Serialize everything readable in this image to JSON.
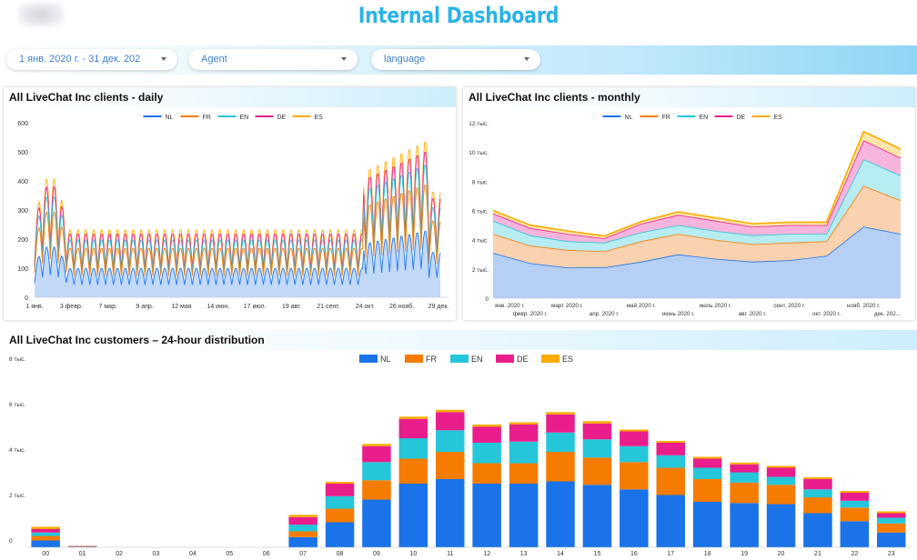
{
  "header": {
    "title": "Internal Dashboard",
    "logo_icon": "blurred-logo-icon"
  },
  "filters": [
    {
      "label": "1 янв. 2020 г. - 31 дек. 202"
    },
    {
      "label": "Agent"
    },
    {
      "label": "language"
    }
  ],
  "colors": {
    "NL": "#1a73e8",
    "FR": "#f57c00",
    "EN": "#26c6da",
    "DE": "#e91e8c",
    "ES": "#f9ab00",
    "title": "#2ab3e6"
  },
  "chart_data": [
    {
      "type": "line",
      "title": "All LiveChat Inc clients - daily",
      "legend": [
        "NL",
        "FR",
        "EN",
        "DE",
        "ES"
      ],
      "legend_position": "top-center",
      "y_ticks": [
        "0",
        "100",
        "200",
        "300",
        "400",
        "500",
        "600"
      ],
      "ylim": [
        0,
        600
      ],
      "x_ticks": [
        "1 янв.",
        "3 февр.",
        "7 мар.",
        "9 апр.",
        "12 мая",
        "14 июн.",
        "17 июл.",
        "19 авг.",
        "21 сент.",
        "24 окт.",
        "26 нояб.",
        "29 дек."
      ],
      "series_summary": {
        "NL": {
          "weekday_low": 50,
          "weekday_high": 150,
          "late_high": 250
        },
        "total_stack_peak": 560
      }
    },
    {
      "type": "area",
      "title": "All LiveChat Inc clients - monthly",
      "legend": [
        "NL",
        "FR",
        "EN",
        "DE",
        "ES"
      ],
      "legend_position": "top-center",
      "y_ticks": [
        "0",
        "2 тыс.",
        "4 тыс.",
        "6 тыс.",
        "8 тыс.",
        "10 тыс.",
        "12 тыс."
      ],
      "ylim": [
        0,
        12000
      ],
      "x_ticks_top": [
        "янв. 2020 г.",
        "март 2020 г.",
        "май 2020 г.",
        "июль 2020 г.",
        "сент. 2020 г.",
        "нояб. 2020 г."
      ],
      "x_ticks_bottom": [
        "февр. 2020 г.",
        "апр. 2020 г.",
        "июнь 2020 г.",
        "авг. 2020 г.",
        "окт. 2020 г.",
        "дек. 202..."
      ],
      "series": [
        {
          "name": "NL",
          "values": [
            3100,
            2400,
            2100,
            2100,
            2500,
            3000,
            2700,
            2500,
            2600,
            2900,
            4900,
            4400
          ]
        },
        {
          "name": "FR",
          "values": [
            1300,
            1200,
            1200,
            1100,
            1400,
            1400,
            1300,
            1200,
            1200,
            1000,
            2800,
            2300
          ]
        },
        {
          "name": "EN",
          "values": [
            900,
            700,
            600,
            600,
            600,
            600,
            600,
            600,
            600,
            500,
            1800,
            1700
          ]
        },
        {
          "name": "DE",
          "values": [
            500,
            500,
            500,
            300,
            600,
            700,
            700,
            600,
            600,
            600,
            1300,
            1200
          ]
        },
        {
          "name": "ES",
          "values": [
            200,
            200,
            200,
            150,
            150,
            200,
            200,
            200,
            200,
            200,
            600,
            600
          ]
        }
      ]
    },
    {
      "type": "bar",
      "stacked": true,
      "title": "All LiveChat Inc customers – 24-hour distribution",
      "legend": [
        "NL",
        "FR",
        "EN",
        "DE",
        "ES"
      ],
      "legend_position": "top-center",
      "y_ticks": [
        "0",
        "2 тыс.",
        "4 тыс.",
        "6 тыс.",
        "8 тыс."
      ],
      "ylim": [
        0,
        8000
      ],
      "categories": [
        "00",
        "01",
        "02",
        "03",
        "04",
        "05",
        "06",
        "07",
        "08",
        "09",
        "10",
        "11",
        "12",
        "13",
        "14",
        "15",
        "16",
        "17",
        "18",
        "19",
        "20",
        "21",
        "22",
        "23"
      ],
      "series": [
        {
          "name": "NL",
          "values": [
            300,
            20,
            0,
            0,
            0,
            0,
            0,
            450,
            1100,
            2100,
            2800,
            3000,
            2800,
            2800,
            2900,
            2750,
            2550,
            2300,
            2000,
            1950,
            1900,
            1500,
            1150,
            650
          ]
        },
        {
          "name": "FR",
          "values": [
            200,
            20,
            0,
            0,
            0,
            0,
            0,
            250,
            600,
            850,
            1100,
            1200,
            900,
            900,
            1300,
            1200,
            1200,
            1200,
            1000,
            900,
            850,
            700,
            600,
            400
          ]
        },
        {
          "name": "EN",
          "values": [
            150,
            10,
            0,
            0,
            0,
            0,
            0,
            300,
            550,
            800,
            900,
            950,
            900,
            950,
            850,
            800,
            700,
            550,
            500,
            450,
            350,
            350,
            300,
            250
          ]
        },
        {
          "name": "DE",
          "values": [
            150,
            10,
            0,
            0,
            0,
            0,
            0,
            330,
            550,
            700,
            850,
            800,
            700,
            750,
            800,
            700,
            650,
            550,
            400,
            350,
            400,
            450,
            350,
            200
          ]
        },
        {
          "name": "ES",
          "values": [
            100,
            5,
            0,
            0,
            0,
            0,
            0,
            100,
            80,
            100,
            100,
            100,
            100,
            100,
            100,
            100,
            80,
            80,
            80,
            80,
            80,
            80,
            80,
            80
          ]
        }
      ]
    }
  ]
}
